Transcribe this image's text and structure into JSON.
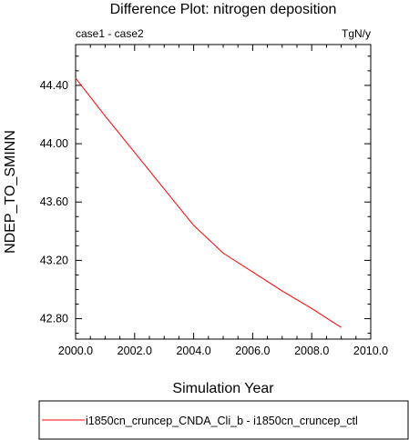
{
  "chart_data": {
    "type": "line",
    "title": "Difference Plot: nitrogen deposition",
    "subtitle_left": "case1 - case2",
    "subtitle_right": "TgN/y",
    "xlabel": "Simulation Year",
    "ylabel": "NDEP_TO_SMINN",
    "xlim": [
      2000,
      2010
    ],
    "ylim": [
      42.66,
      44.68
    ],
    "x_ticks": [
      2000,
      2002,
      2004,
      2006,
      2008,
      2010
    ],
    "x_tick_labels": [
      "2000.0",
      "2002.0",
      "2004.0",
      "2006.0",
      "2008.0",
      "2010.0"
    ],
    "y_ticks": [
      42.8,
      43.2,
      43.6,
      44.0,
      44.4
    ],
    "y_tick_labels": [
      "42.80",
      "43.20",
      "43.60",
      "44.00",
      "44.40"
    ],
    "grid": false,
    "legend_position": "bottom",
    "series": [
      {
        "name": "i1850cn_cruncep_CNDA_Cli_b - i1850cn_cruncep_ctl",
        "color": "#ff0000",
        "x": [
          2000,
          2001,
          2002,
          2003,
          2004,
          2005,
          2006,
          2007,
          2008,
          2009
        ],
        "y": [
          44.45,
          44.19,
          43.94,
          43.69,
          43.44,
          43.25,
          43.12,
          42.99,
          42.87,
          42.74
        ]
      }
    ]
  }
}
